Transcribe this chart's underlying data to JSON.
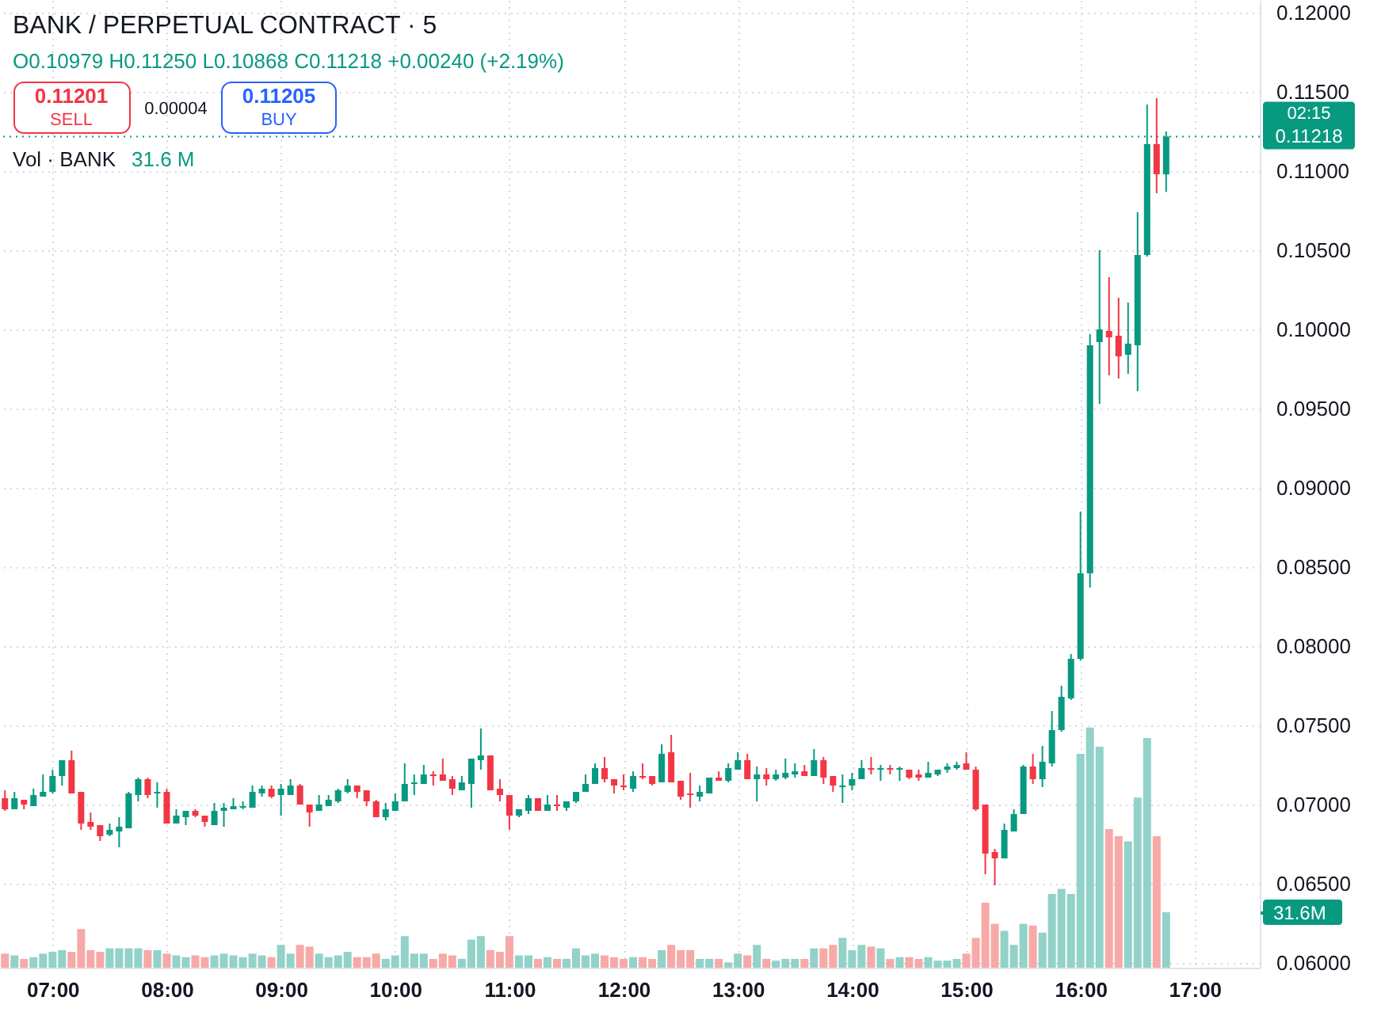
{
  "chart_data": {
    "type": "candlestick",
    "title": "BANK / PERPETUAL CONTRACT · 5",
    "subtitle": "O0.10979 H0.11250 L0.10868 C0.11218 +0.00240 (+2.19%)",
    "annotations": [
      "0.11201",
      "SELL",
      "0.00004",
      "0.11205",
      "BUY",
      "Vol · BANK",
      "31.6 M",
      "02:15"
    ],
    "x": [
      6.5833,
      6.6667,
      6.75,
      6.8333,
      6.9167,
      7,
      7.0833,
      7.1667,
      7.25,
      7.3333,
      7.4167,
      7.5,
      7.5833,
      7.6667,
      7.75,
      7.8333,
      7.9167,
      8,
      8.0833,
      8.1667,
      8.25,
      8.3333,
      8.4167,
      8.5,
      8.5833,
      8.6667,
      8.75,
      8.8333,
      8.9167,
      9,
      9.0833,
      9.1667,
      9.25,
      9.3333,
      9.4167,
      9.5,
      9.5833,
      9.6667,
      9.75,
      9.8333,
      9.9167,
      10,
      10.0833,
      10.1667,
      10.25,
      10.3333,
      10.4167,
      10.5,
      10.5833,
      10.6667,
      10.75,
      10.8333,
      10.9167,
      11,
      11.0833,
      11.1667,
      11.25,
      11.3333,
      11.4167,
      11.5,
      11.5833,
      11.6667,
      11.75,
      11.8333,
      11.9167,
      12,
      12.0833,
      12.1667,
      12.25,
      12.3333,
      12.4167,
      12.5,
      12.5833,
      12.6667,
      12.75,
      12.8333,
      12.9167,
      13,
      13.0833,
      13.1667,
      13.25,
      13.3333,
      13.4167,
      13.5,
      13.5833,
      13.6667,
      13.75,
      13.8333,
      13.9167,
      14,
      14.0833,
      14.1667,
      14.25,
      14.3333,
      14.4167,
      14.5,
      14.5833,
      14.6667,
      14.75,
      14.8333,
      14.9167,
      15,
      15.0833,
      15.1667,
      15.25,
      15.3333,
      15.4167,
      15.5,
      15.5833,
      15.6667,
      15.75,
      15.8333,
      15.9167,
      16,
      16.0833,
      16.1667,
      16.25,
      16.3333,
      16.4167,
      16.5,
      16.5833,
      16.6667,
      16.75
    ],
    "xlim": [
      6.54,
      17.57
    ],
    "xticks": [
      {
        "value": 7,
        "label": "07:00"
      },
      {
        "value": 8,
        "label": "08:00"
      },
      {
        "value": 9,
        "label": "09:00"
      },
      {
        "value": 10,
        "label": "10:00"
      },
      {
        "value": 11,
        "label": "11:00"
      },
      {
        "value": 12,
        "label": "12:00"
      },
      {
        "value": 13,
        "label": "13:00"
      },
      {
        "value": 14,
        "label": "14:00"
      },
      {
        "value": 15,
        "label": "15:00"
      },
      {
        "value": 16,
        "label": "16:00"
      },
      {
        "value": 17,
        "label": "17:00"
      }
    ],
    "ylim": [
      0.0597,
      0.1208
    ],
    "yticks": [
      {
        "value": 0.06,
        "label": "0.06000"
      },
      {
        "value": 0.065,
        "label": "0.06500"
      },
      {
        "value": 0.07,
        "label": "0.07000"
      },
      {
        "value": 0.075,
        "label": "0.07500"
      },
      {
        "value": 0.08,
        "label": "0.08000"
      },
      {
        "value": 0.085,
        "label": "0.08500"
      },
      {
        "value": 0.09,
        "label": "0.09000"
      },
      {
        "value": 0.095,
        "label": "0.09500"
      },
      {
        "value": 0.1,
        "label": "0.10000"
      },
      {
        "value": 0.105,
        "label": "0.10500"
      },
      {
        "value": 0.11,
        "label": "0.11000"
      },
      {
        "value": 0.115,
        "label": "0.11500"
      },
      {
        "value": 0.12,
        "label": "0.12000"
      }
    ],
    "y2lim": [
      0,
      552
    ],
    "y2ticks": [
      {
        "value": 31.6,
        "label": "31.6M"
      }
    ],
    "grid": true,
    "ref_lines": [
      {
        "axis": "y",
        "value": 0.11218,
        "label": "0.11218",
        "color": "#089981",
        "line_style": "dotted"
      }
    ],
    "series": [
      {
        "ohlc": [
          [
            0.0704,
            0.0709,
            0.0696,
            0.0697
          ],
          [
            0.0697,
            0.0708,
            0.0697,
            0.0704
          ],
          [
            0.0703,
            0.0703,
            0.0697,
            0.07
          ],
          [
            0.0699,
            0.071,
            0.0699,
            0.0706
          ],
          [
            0.0705,
            0.0719,
            0.0705,
            0.0708
          ],
          [
            0.0708,
            0.0722,
            0.0707,
            0.0718
          ],
          [
            0.0718,
            0.0728,
            0.0712,
            0.0728
          ],
          [
            0.0728,
            0.0734,
            0.0707,
            0.0707
          ],
          [
            0.0708,
            0.0708,
            0.0684,
            0.0688
          ],
          [
            0.0689,
            0.0695,
            0.0684,
            0.0686
          ],
          [
            0.0687,
            0.0687,
            0.0677,
            0.068
          ],
          [
            0.0681,
            0.0688,
            0.068,
            0.0684
          ],
          [
            0.0683,
            0.0692,
            0.0673,
            0.0686
          ],
          [
            0.0685,
            0.0708,
            0.0685,
            0.0707
          ],
          [
            0.0706,
            0.0717,
            0.0702,
            0.0716
          ],
          [
            0.0716,
            0.0717,
            0.0704,
            0.0706
          ],
          [
            0.0707,
            0.0714,
            0.0698,
            0.0708
          ],
          [
            0.0708,
            0.071,
            0.0688,
            0.0688
          ],
          [
            0.0688,
            0.0697,
            0.0688,
            0.0693
          ],
          [
            0.0692,
            0.0696,
            0.0687,
            0.0696
          ],
          [
            0.0696,
            0.0697,
            0.0692,
            0.0693
          ],
          [
            0.0693,
            0.0693,
            0.0686,
            0.0689
          ],
          [
            0.0687,
            0.0701,
            0.0687,
            0.0696
          ],
          [
            0.0696,
            0.0701,
            0.0686,
            0.0698
          ],
          [
            0.0697,
            0.0704,
            0.0697,
            0.0699
          ],
          [
            0.0698,
            0.0702,
            0.0697,
            0.0699
          ],
          [
            0.0698,
            0.0712,
            0.0698,
            0.0708
          ],
          [
            0.0707,
            0.0712,
            0.0705,
            0.071
          ],
          [
            0.071,
            0.0712,
            0.0704,
            0.0705
          ],
          [
            0.0706,
            0.0713,
            0.0693,
            0.071
          ],
          [
            0.0706,
            0.0716,
            0.0706,
            0.0712
          ],
          [
            0.0712,
            0.0713,
            0.07,
            0.07
          ],
          [
            0.07,
            0.07,
            0.0686,
            0.0695
          ],
          [
            0.0696,
            0.0706,
            0.0696,
            0.07
          ],
          [
            0.0699,
            0.0706,
            0.0699,
            0.0703
          ],
          [
            0.0702,
            0.071,
            0.0701,
            0.0709
          ],
          [
            0.0708,
            0.0716,
            0.0707,
            0.0712
          ],
          [
            0.0712,
            0.0712,
            0.0704,
            0.0708
          ],
          [
            0.0709,
            0.0709,
            0.0699,
            0.0702
          ],
          [
            0.0702,
            0.0703,
            0.0692,
            0.0692
          ],
          [
            0.0692,
            0.0701,
            0.069,
            0.0697
          ],
          [
            0.0696,
            0.0707,
            0.0696,
            0.0702
          ],
          [
            0.0702,
            0.0726,
            0.0702,
            0.0713
          ],
          [
            0.0713,
            0.0719,
            0.0706,
            0.0714
          ],
          [
            0.0713,
            0.0725,
            0.0713,
            0.0719
          ],
          [
            0.0719,
            0.0721,
            0.0712,
            0.0718
          ],
          [
            0.0719,
            0.0729,
            0.0715,
            0.0715
          ],
          [
            0.0716,
            0.0718,
            0.0706,
            0.071
          ],
          [
            0.0709,
            0.0718,
            0.0709,
            0.0714
          ],
          [
            0.0713,
            0.0729,
            0.0698,
            0.0729
          ],
          [
            0.0728,
            0.0748,
            0.0722,
            0.0731
          ],
          [
            0.0731,
            0.0731,
            0.0709,
            0.0709
          ],
          [
            0.071,
            0.0716,
            0.0702,
            0.0706
          ],
          [
            0.0706,
            0.0706,
            0.0684,
            0.0693
          ],
          [
            0.0693,
            0.0697,
            0.0692,
            0.0697
          ],
          [
            0.0696,
            0.0706,
            0.0694,
            0.0704
          ],
          [
            0.0704,
            0.0704,
            0.0696,
            0.0696
          ],
          [
            0.0696,
            0.0706,
            0.0696,
            0.07
          ],
          [
            0.07,
            0.0706,
            0.0696,
            0.0699
          ],
          [
            0.0698,
            0.0702,
            0.0696,
            0.0702
          ],
          [
            0.0702,
            0.0708,
            0.0701,
            0.0708
          ],
          [
            0.0708,
            0.0719,
            0.0708,
            0.0713
          ],
          [
            0.0713,
            0.0726,
            0.0713,
            0.0723
          ],
          [
            0.0723,
            0.073,
            0.0714,
            0.0716
          ],
          [
            0.0716,
            0.0716,
            0.0707,
            0.0712
          ],
          [
            0.0712,
            0.0719,
            0.0709,
            0.0711
          ],
          [
            0.071,
            0.0721,
            0.0708,
            0.0718
          ],
          [
            0.0718,
            0.0726,
            0.0716,
            0.0717
          ],
          [
            0.0718,
            0.0718,
            0.0712,
            0.0713
          ],
          [
            0.0714,
            0.0738,
            0.0714,
            0.0732
          ],
          [
            0.0733,
            0.0744,
            0.0714,
            0.0714
          ],
          [
            0.0715,
            0.0715,
            0.0703,
            0.0705
          ],
          [
            0.0707,
            0.072,
            0.0698,
            0.0706
          ],
          [
            0.0705,
            0.0712,
            0.0702,
            0.0708
          ],
          [
            0.0707,
            0.0717,
            0.0707,
            0.0717
          ],
          [
            0.0717,
            0.0721,
            0.0715,
            0.0715
          ],
          [
            0.0715,
            0.0726,
            0.0714,
            0.0723
          ],
          [
            0.0722,
            0.0733,
            0.0722,
            0.0728
          ],
          [
            0.0728,
            0.0732,
            0.0716,
            0.0716
          ],
          [
            0.0716,
            0.0724,
            0.0702,
            0.0719
          ],
          [
            0.0719,
            0.0723,
            0.0712,
            0.0716
          ],
          [
            0.0716,
            0.0722,
            0.0715,
            0.0719
          ],
          [
            0.0717,
            0.0729,
            0.0716,
            0.072
          ],
          [
            0.0719,
            0.0726,
            0.0717,
            0.0721
          ],
          [
            0.0721,
            0.0725,
            0.0718,
            0.0718
          ],
          [
            0.0718,
            0.0735,
            0.0718,
            0.0728
          ],
          [
            0.0728,
            0.073,
            0.0713,
            0.0717
          ],
          [
            0.0718,
            0.0718,
            0.0708,
            0.0712
          ],
          [
            0.0711,
            0.0719,
            0.0701,
            0.0712
          ],
          [
            0.0712,
            0.072,
            0.0709,
            0.0716
          ],
          [
            0.0716,
            0.0728,
            0.0716,
            0.0723
          ],
          [
            0.0723,
            0.073,
            0.0719,
            0.0722
          ],
          [
            0.0722,
            0.0725,
            0.0715,
            0.0723
          ],
          [
            0.0723,
            0.0725,
            0.0719,
            0.0722
          ],
          [
            0.0722,
            0.0724,
            0.0715,
            0.0723
          ],
          [
            0.0722,
            0.0722,
            0.0716,
            0.0717
          ],
          [
            0.0719,
            0.0722,
            0.0715,
            0.0717
          ],
          [
            0.0717,
            0.0727,
            0.0717,
            0.072
          ],
          [
            0.0719,
            0.0722,
            0.0718,
            0.0722
          ],
          [
            0.0722,
            0.0726,
            0.072,
            0.0724
          ],
          [
            0.0723,
            0.0727,
            0.0722,
            0.0725
          ],
          [
            0.0726,
            0.0733,
            0.0722,
            0.0722
          ],
          [
            0.0722,
            0.0724,
            0.0696,
            0.0697
          ],
          [
            0.07,
            0.07,
            0.0656,
            0.0669
          ],
          [
            0.067,
            0.0672,
            0.0649,
            0.0666
          ],
          [
            0.0666,
            0.0688,
            0.0666,
            0.0684
          ],
          [
            0.0683,
            0.0697,
            0.0683,
            0.0694
          ],
          [
            0.0694,
            0.0725,
            0.0694,
            0.0724
          ],
          [
            0.0724,
            0.0732,
            0.0713,
            0.0716
          ],
          [
            0.0716,
            0.0737,
            0.0711,
            0.0727
          ],
          [
            0.0726,
            0.0759,
            0.0724,
            0.0747
          ],
          [
            0.0747,
            0.0775,
            0.0746,
            0.0768
          ],
          [
            0.0767,
            0.0795,
            0.0766,
            0.0792
          ],
          [
            0.0792,
            0.0885,
            0.0791,
            0.0846
          ],
          [
            0.0846,
            0.0997,
            0.0837,
            0.099
          ],
          [
            0.0992,
            0.105,
            0.0953,
            0.1
          ],
          [
            0.0999,
            0.1033,
            0.0971,
            0.0995
          ],
          [
            0.0996,
            0.102,
            0.0969,
            0.0983
          ],
          [
            0.0984,
            0.1017,
            0.0972,
            0.0991
          ],
          [
            0.099,
            0.1074,
            0.0961,
            0.1047
          ],
          [
            0.1047,
            0.1142,
            0.1046,
            0.1117
          ],
          [
            0.1117,
            0.1146,
            0.1086,
            0.1098
          ],
          [
            0.10979,
            0.1125,
            0.10868,
            0.11218
          ]
        ],
        "colors": [
          "#f23645",
          "#089981",
          "#f23645",
          "#089981",
          "#089981",
          "#089981",
          "#089981",
          "#f23645",
          "#f23645",
          "#f23645",
          "#f23645",
          "#089981",
          "#089981",
          "#089981",
          "#089981",
          "#f23645",
          "#089981",
          "#f23645",
          "#089981",
          "#089981",
          "#f23645",
          "#f23645",
          "#089981",
          "#089981",
          "#089981",
          "#089981",
          "#089981",
          "#089981",
          "#f23645",
          "#089981",
          "#089981",
          "#f23645",
          "#f23645",
          "#089981",
          "#089981",
          "#089981",
          "#089981",
          "#f23645",
          "#f23645",
          "#f23645",
          "#089981",
          "#089981",
          "#089981",
          "#089981",
          "#089981",
          "#f23645",
          "#f23645",
          "#f23645",
          "#089981",
          "#089981",
          "#089981",
          "#f23645",
          "#f23645",
          "#f23645",
          "#089981",
          "#089981",
          "#f23645",
          "#089981",
          "#f23645",
          "#089981",
          "#089981",
          "#089981",
          "#089981",
          "#f23645",
          "#f23645",
          "#f23645",
          "#089981",
          "#f23645",
          "#f23645",
          "#089981",
          "#f23645",
          "#f23645",
          "#f23645",
          "#089981",
          "#089981",
          "#f23645",
          "#089981",
          "#089981",
          "#f23645",
          "#089981",
          "#f23645",
          "#089981",
          "#089981",
          "#089981",
          "#f23645",
          "#089981",
          "#f23645",
          "#f23645",
          "#089981",
          "#089981",
          "#089981",
          "#f23645",
          "#089981",
          "#f23645",
          "#089981",
          "#f23645",
          "#f23645",
          "#089981",
          "#089981",
          "#089981",
          "#089981",
          "#f23645",
          "#f23645",
          "#f23645",
          "#f23645",
          "#089981",
          "#089981",
          "#089981",
          "#f23645",
          "#089981",
          "#089981",
          "#089981",
          "#089981",
          "#089981",
          "#089981",
          "#089981",
          "#f23645",
          "#f23645",
          "#089981",
          "#089981",
          "#089981",
          "#f23645",
          "#089981"
        ]
      },
      {
        "type": "bar",
        "axis": "y2",
        "values": [
          8,
          7,
          5,
          6,
          8,
          9,
          10,
          9,
          22,
          10,
          9,
          11,
          11,
          11,
          11,
          10,
          10,
          8,
          7,
          6,
          7,
          6,
          7,
          8,
          7,
          6,
          8,
          7,
          6,
          13,
          8,
          13,
          12,
          8,
          6,
          7,
          9,
          6,
          6,
          8,
          5,
          7,
          18,
          8,
          8,
          5,
          8,
          7,
          5,
          16,
          18,
          10,
          9,
          18,
          7,
          7,
          5,
          6,
          5,
          5,
          11,
          7,
          8,
          7,
          6,
          5,
          6,
          6,
          5,
          10,
          13,
          10,
          10,
          5,
          5,
          5,
          3,
          8,
          7,
          13,
          5,
          4,
          5,
          5,
          5,
          11,
          11,
          13,
          17,
          10,
          13,
          12,
          11,
          5,
          6,
          6,
          5,
          6,
          4,
          4,
          5,
          8,
          17,
          37,
          25,
          21,
          13,
          25,
          24,
          20,
          42,
          45,
          42,
          122,
          137,
          126,
          79,
          75,
          72,
          97,
          131,
          75,
          31.6
        ],
        "colors": [
          "#f7a9a7",
          "#92d2c8",
          "#f7a9a7",
          "#92d2c8",
          "#92d2c8",
          "#92d2c8",
          "#92d2c8",
          "#f7a9a7",
          "#f7a9a7",
          "#f7a9a7",
          "#f7a9a7",
          "#92d2c8",
          "#92d2c8",
          "#92d2c8",
          "#92d2c8",
          "#f7a9a7",
          "#92d2c8",
          "#f7a9a7",
          "#92d2c8",
          "#92d2c8",
          "#f7a9a7",
          "#f7a9a7",
          "#92d2c8",
          "#92d2c8",
          "#92d2c8",
          "#92d2c8",
          "#92d2c8",
          "#92d2c8",
          "#f7a9a7",
          "#92d2c8",
          "#92d2c8",
          "#f7a9a7",
          "#f7a9a7",
          "#92d2c8",
          "#92d2c8",
          "#92d2c8",
          "#92d2c8",
          "#f7a9a7",
          "#f7a9a7",
          "#f7a9a7",
          "#92d2c8",
          "#92d2c8",
          "#92d2c8",
          "#92d2c8",
          "#92d2c8",
          "#f7a9a7",
          "#f7a9a7",
          "#f7a9a7",
          "#92d2c8",
          "#92d2c8",
          "#92d2c8",
          "#f7a9a7",
          "#f7a9a7",
          "#f7a9a7",
          "#92d2c8",
          "#92d2c8",
          "#f7a9a7",
          "#92d2c8",
          "#f7a9a7",
          "#92d2c8",
          "#92d2c8",
          "#92d2c8",
          "#92d2c8",
          "#f7a9a7",
          "#f7a9a7",
          "#f7a9a7",
          "#92d2c8",
          "#f7a9a7",
          "#f7a9a7",
          "#92d2c8",
          "#f7a9a7",
          "#f7a9a7",
          "#f7a9a7",
          "#92d2c8",
          "#92d2c8",
          "#f7a9a7",
          "#92d2c8",
          "#92d2c8",
          "#f7a9a7",
          "#92d2c8",
          "#f7a9a7",
          "#92d2c8",
          "#92d2c8",
          "#92d2c8",
          "#f7a9a7",
          "#92d2c8",
          "#f7a9a7",
          "#f7a9a7",
          "#92d2c8",
          "#92d2c8",
          "#92d2c8",
          "#f7a9a7",
          "#92d2c8",
          "#f7a9a7",
          "#92d2c8",
          "#f7a9a7",
          "#f7a9a7",
          "#92d2c8",
          "#92d2c8",
          "#92d2c8",
          "#92d2c8",
          "#f7a9a7",
          "#f7a9a7",
          "#f7a9a7",
          "#f7a9a7",
          "#92d2c8",
          "#92d2c8",
          "#92d2c8",
          "#f7a9a7",
          "#92d2c8",
          "#92d2c8",
          "#92d2c8",
          "#92d2c8",
          "#92d2c8",
          "#92d2c8",
          "#92d2c8",
          "#f7a9a7",
          "#f7a9a7",
          "#92d2c8",
          "#92d2c8",
          "#92d2c8",
          "#f7a9a7",
          "#92d2c8"
        ]
      }
    ]
  }
}
